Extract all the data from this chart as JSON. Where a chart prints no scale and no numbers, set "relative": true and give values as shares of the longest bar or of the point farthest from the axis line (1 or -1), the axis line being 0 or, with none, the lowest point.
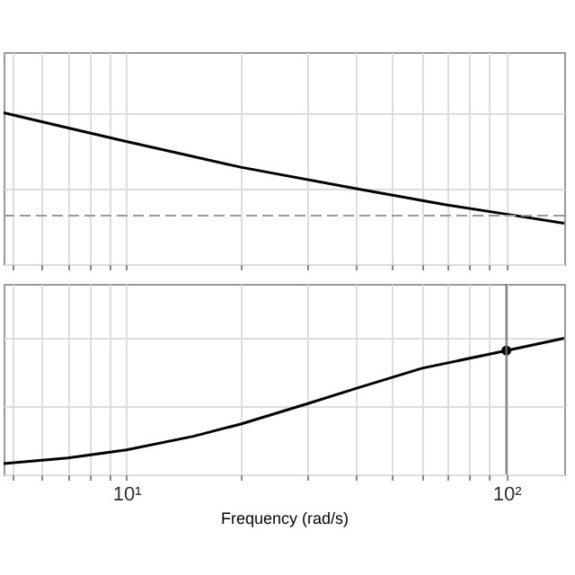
{
  "chart_data": [
    {
      "type": "line",
      "relative": true,
      "x": [
        4.75,
        7,
        10,
        15,
        20,
        40,
        70,
        100,
        142
      ],
      "log": "x",
      "grid": true,
      "tick_labels": false,
      "xlim": [
        4.75,
        142
      ],
      "xticks": [
        {
          "value": 5,
          "label": null
        },
        {
          "value": 6,
          "label": null
        },
        {
          "value": 7,
          "label": null
        },
        {
          "value": 8,
          "label": null
        },
        {
          "value": 9,
          "label": null
        },
        {
          "value": 10,
          "label": null
        },
        {
          "value": 20,
          "label": null
        },
        {
          "value": 30,
          "label": null
        },
        {
          "value": 40,
          "label": null
        },
        {
          "value": 50,
          "label": null
        },
        {
          "value": 60,
          "label": null
        },
        {
          "value": 70,
          "label": null
        },
        {
          "value": 80,
          "label": null
        },
        {
          "value": 90,
          "label": null
        },
        {
          "value": 100,
          "label": null
        }
      ],
      "series": [
        {
          "color": "#000000",
          "values": [
            1,
            0.9,
            0.81,
            0.71,
            0.64,
            0.5,
            0.39,
            0.33,
            0.27
          ]
        }
      ],
      "ref_lines": [
        {
          "axis": "y",
          "value": 0.32,
          "color": "#999999",
          "line_style": "dashed"
        }
      ]
    },
    {
      "type": "line",
      "relative": true,
      "x": [
        4.75,
        7,
        10,
        15,
        20,
        30,
        40,
        60,
        100,
        142
      ],
      "log": "x",
      "grid": true,
      "tick_labels": "x",
      "xlabel": "Frequency  (rad/s)",
      "xlim": [
        4.75,
        142
      ],
      "xticks": [
        {
          "value": 5,
          "label": null
        },
        {
          "value": 6,
          "label": null
        },
        {
          "value": 7,
          "label": null
        },
        {
          "value": 8,
          "label": null
        },
        {
          "value": 9,
          "label": null
        },
        {
          "value": 10,
          "label": "10¹"
        },
        {
          "value": 20,
          "label": null
        },
        {
          "value": 30,
          "label": null
        },
        {
          "value": 40,
          "label": null
        },
        {
          "value": 50,
          "label": null
        },
        {
          "value": 60,
          "label": null
        },
        {
          "value": 70,
          "label": null
        },
        {
          "value": 80,
          "label": null
        },
        {
          "value": 90,
          "label": null
        },
        {
          "value": 100,
          "label": "10²"
        }
      ],
      "series": [
        {
          "color": "#000000",
          "values": [
            0.08,
            0.12,
            0.18,
            0.28,
            0.37,
            0.52,
            0.63,
            0.78,
            0.91,
            1
          ]
        },
        {
          "type": "scatter",
          "marker": "circle",
          "color": "#000000",
          "x": [
            100
          ],
          "values": [
            0.91
          ]
        }
      ],
      "ref_lines": [
        {
          "axis": "x",
          "value": 100,
          "color": "#777777",
          "line_style": "solid"
        }
      ]
    }
  ]
}
